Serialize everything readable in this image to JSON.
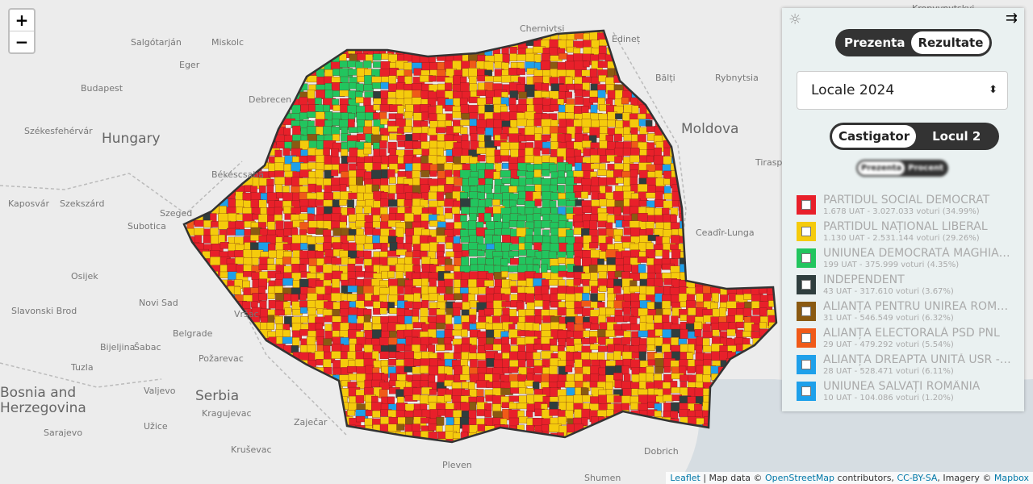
{
  "map": {
    "zoom_in": "+",
    "zoom_out": "−",
    "labels": [
      "Kropyvnytskyi",
      "Salgótarján",
      "Miskolc",
      "Chernivtsi",
      "Edineț",
      "Eger",
      "Bălți",
      "Rybnytsia",
      "Budapest",
      "Debrecen",
      "Székesfehérvár",
      "Hungary",
      "Moldova",
      "Békéscsaba",
      "Tiraspol",
      "Kaposvár",
      "Szeged",
      "Szekszárd",
      "Subotica",
      "Ceadîr-Lunga",
      "Osijek",
      "Novi Sad",
      "Slavonski Brod",
      "Vršac",
      "Belgrade",
      "Bijeljina",
      "Šabac",
      "Požarevac",
      "Tuzla",
      "Bosnia and",
      "Herzegovina",
      "Serbia",
      "Valjevo",
      "Kragujevac",
      "Užice",
      "Sarajevo",
      "Zaječar",
      "Kruševac",
      "Pleven",
      "Shumen",
      "Dobrich"
    ],
    "attribution": {
      "leaflet": "Leaflet",
      "text1": " | Map data © ",
      "osm": "OpenStreetMap",
      "text2": " contributors, ",
      "license": "CC-BY-SA",
      "text3": ", Imagery © ",
      "mapbox": "Mapbox"
    }
  },
  "panel": {
    "mode_toggle": [
      "Prezenta",
      "Rezultate"
    ],
    "election": "Locale 2024",
    "rank_toggle": [
      "Castigator",
      "Locul 2"
    ],
    "metric_toggle": [
      "Prezenta",
      "Procent"
    ],
    "legend": [
      {
        "name": "PARTIDUL SOCIAL DEMOCRAT",
        "detail": "1.678 UAT - 3.027.033 voturi (34.99%)",
        "color": "#e8202a"
      },
      {
        "name": "PARTIDUL NAȚIONAL LIBERAL",
        "detail": "1.130 UAT - 2.531.144 voturi (29.26%)",
        "color": "#f5cb0c"
      },
      {
        "name": "UNIUNEA DEMOCRATĂ MAGHIARĂ DIN ROMÂNIA",
        "detail": "199 UAT - 375.999 voturi (4.35%)",
        "color": "#22c55e"
      },
      {
        "name": "INDEPENDENT",
        "detail": "43 UAT - 317.610 voturi (3.67%)",
        "color": "#2f3e3e"
      },
      {
        "name": "ALIANȚA PENTRU UNIREA ROMÂNILOR",
        "detail": "31 UAT - 546.549 voturi (6.32%)",
        "color": "#8a5a12"
      },
      {
        "name": "ALIANȚA ELECTORALĂ PSD PNL",
        "detail": "29 UAT - 479.292 voturi (5.54%)",
        "color": "#f05a18"
      },
      {
        "name": "ALIANȚA DREAPTA UNITĂ USR - PMP - FORȚA DREPTEI",
        "detail": "28 UAT - 528.471 voturi (6.11%)",
        "color": "#1ea0ea"
      },
      {
        "name": "UNIUNEA SALVAȚI ROMÂNIA",
        "detail": "10 UAT - 104.086 voturi (1.20%)",
        "color": "#1ea0ea"
      }
    ]
  }
}
